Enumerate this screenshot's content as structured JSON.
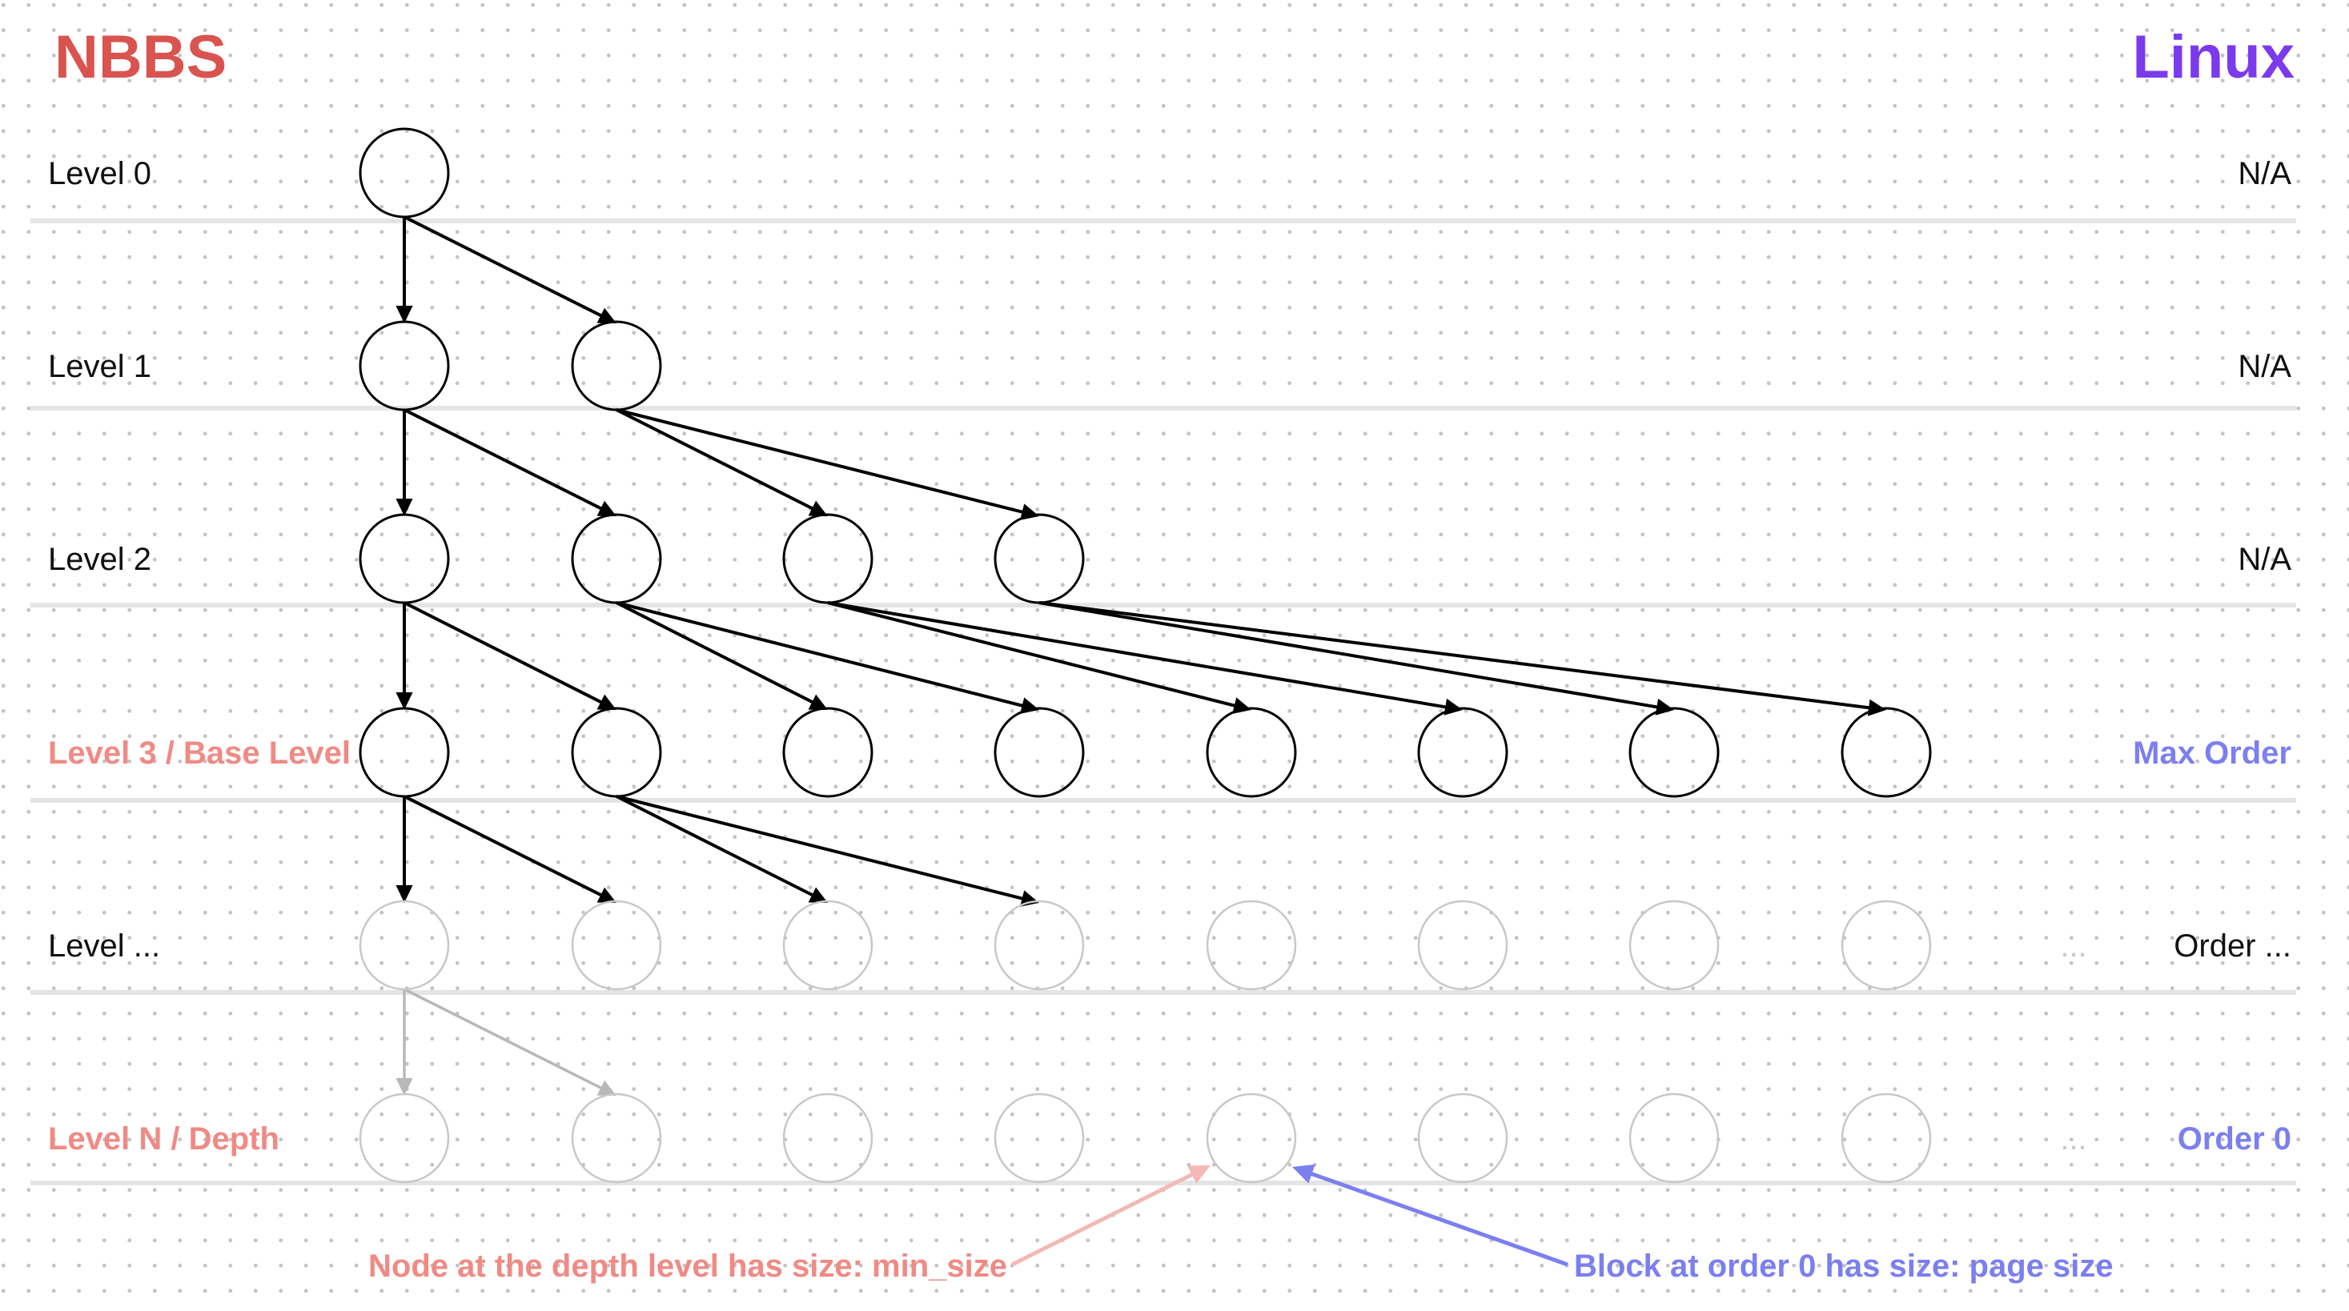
{
  "headers": {
    "left": "NBBS",
    "right": "Linux",
    "left_color": "#d9534f",
    "right_color": "#7c3aed"
  },
  "rows": [
    {
      "label": "Level 0",
      "right": "N/A",
      "nodes": 1,
      "style": "solid",
      "label_style": "plain",
      "right_style": "plain",
      "dots": false
    },
    {
      "label": "Level 1",
      "right": "N/A",
      "nodes": 2,
      "style": "solid",
      "label_style": "plain",
      "right_style": "plain",
      "dots": false
    },
    {
      "label": "Level 2",
      "right": "N/A",
      "nodes": 4,
      "style": "solid",
      "label_style": "plain",
      "right_style": "plain",
      "dots": false
    },
    {
      "label": "Level 3 / Base Level",
      "right": "Max Order",
      "nodes": 8,
      "style": "solid",
      "label_style": "accent-red",
      "right_style": "accent-blue",
      "dots": false
    },
    {
      "label": "Level ...",
      "right": "Order ...",
      "nodes": 8,
      "style": "faded",
      "label_style": "plain",
      "right_style": "plain",
      "dots": true
    },
    {
      "label": "Level N  / Depth",
      "right": "Order 0",
      "nodes": 8,
      "style": "faded",
      "label_style": "accent-red",
      "right_style": "accent-blue",
      "dots": true
    }
  ],
  "ellipsis": "...",
  "edges": [
    {
      "from": [
        0,
        0
      ],
      "to": [
        1,
        0
      ]
    },
    {
      "from": [
        0,
        0
      ],
      "to": [
        1,
        1
      ]
    },
    {
      "from": [
        1,
        0
      ],
      "to": [
        2,
        0
      ]
    },
    {
      "from": [
        1,
        0
      ],
      "to": [
        2,
        1
      ]
    },
    {
      "from": [
        1,
        1
      ],
      "to": [
        2,
        2
      ]
    },
    {
      "from": [
        1,
        1
      ],
      "to": [
        2,
        3
      ]
    },
    {
      "from": [
        2,
        0
      ],
      "to": [
        3,
        0
      ]
    },
    {
      "from": [
        2,
        0
      ],
      "to": [
        3,
        1
      ]
    },
    {
      "from": [
        2,
        1
      ],
      "to": [
        3,
        2
      ]
    },
    {
      "from": [
        2,
        1
      ],
      "to": [
        3,
        3
      ]
    },
    {
      "from": [
        2,
        2
      ],
      "to": [
        3,
        4
      ]
    },
    {
      "from": [
        2,
        2
      ],
      "to": [
        3,
        5
      ]
    },
    {
      "from": [
        2,
        3
      ],
      "to": [
        3,
        6
      ]
    },
    {
      "from": [
        2,
        3
      ],
      "to": [
        3,
        7
      ]
    },
    {
      "from": [
        3,
        0
      ],
      "to": [
        4,
        0
      ]
    },
    {
      "from": [
        3,
        0
      ],
      "to": [
        4,
        1
      ]
    },
    {
      "from": [
        3,
        1
      ],
      "to": [
        4,
        2
      ]
    },
    {
      "from": [
        3,
        1
      ],
      "to": [
        4,
        3
      ]
    },
    {
      "from": [
        4,
        0
      ],
      "to": [
        5,
        0
      ],
      "faded": true
    },
    {
      "from": [
        4,
        0
      ],
      "to": [
        5,
        1
      ],
      "faded": true
    }
  ],
  "annotations": {
    "nbbs_note": "Node at the depth level has size: min_size",
    "linux_note": "Block at order 0 has size: page size",
    "nbbs_color": "#f08a84",
    "nbbs_arrow_color": "#f5b8b4",
    "linux_color": "#7b7ff0"
  },
  "colors": {
    "ink": "#000000",
    "faded_node": "#c8c8c8",
    "faded_edge": "#b8b8b8",
    "separator": "#e4e4e4",
    "label": "#111111"
  }
}
